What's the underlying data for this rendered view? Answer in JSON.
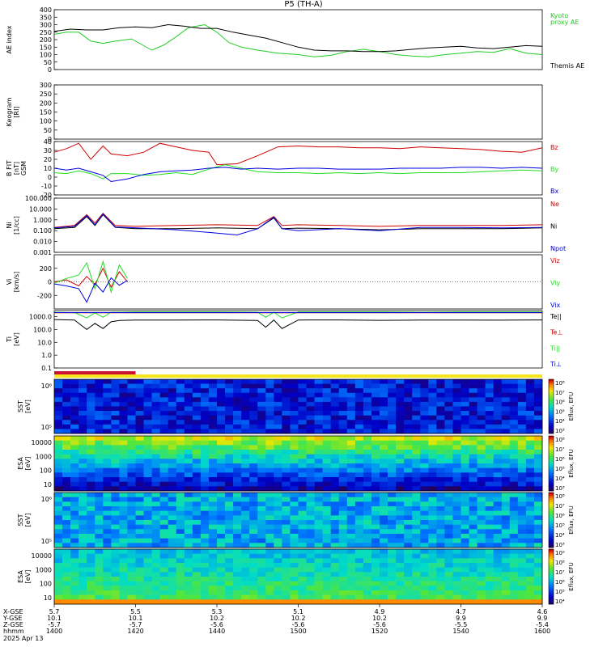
{
  "title": "P5  (TH-A)",
  "date_label": "2025 Apr 13",
  "colors": {
    "kyoto": "#22cc22",
    "themis": "#000000",
    "red": "#d00000",
    "green": "#22dd22",
    "blue": "#0000dd",
    "mode_red": "#cc1133",
    "mode_yellow": "#f5e51a"
  },
  "chart_data": [
    {
      "type": "line",
      "panel": "ae",
      "ylabel": "AE index",
      "ylim": [
        0,
        400
      ],
      "yticks": [
        "0",
        "50",
        "100",
        "150",
        "200",
        "250",
        "300",
        "350",
        "400"
      ],
      "series": [
        {
          "name": "Kyoto proxy AE",
          "label_lines": [
            "Kyoto",
            "proxy AE"
          ],
          "color": "#22cc22",
          "x": [
            0,
            3,
            6,
            9,
            12,
            15,
            19,
            24,
            27,
            30,
            33,
            37,
            40,
            43,
            46,
            50,
            55,
            60,
            64,
            68,
            72,
            76,
            80,
            84,
            88,
            92,
            96,
            100,
            104,
            108,
            112,
            116,
            120
          ],
          "y": [
            235,
            250,
            250,
            190,
            175,
            190,
            205,
            130,
            165,
            220,
            280,
            300,
            250,
            180,
            150,
            130,
            110,
            100,
            85,
            95,
            120,
            135,
            120,
            100,
            90,
            85,
            100,
            110,
            120,
            115,
            140,
            110,
            100
          ]
        },
        {
          "name": "Themis AE",
          "label_lines": [
            "Themis AE"
          ],
          "color": "#000000",
          "x": [
            0,
            4,
            8,
            12,
            16,
            20,
            24,
            28,
            32,
            36,
            40,
            44,
            48,
            52,
            56,
            60,
            64,
            68,
            72,
            76,
            80,
            84,
            88,
            92,
            96,
            100,
            104,
            108,
            112,
            116,
            120
          ],
          "y": [
            255,
            270,
            265,
            265,
            280,
            285,
            280,
            300,
            290,
            275,
            275,
            250,
            230,
            210,
            180,
            150,
            130,
            125,
            125,
            120,
            120,
            125,
            135,
            145,
            150,
            155,
            145,
            140,
            150,
            160,
            155
          ]
        }
      ]
    },
    {
      "type": "line",
      "panel": "keogram",
      "ylabel": "Keogram",
      "ylabel2": "[RI]",
      "ylim": [
        0,
        300
      ],
      "yticks": [
        "0",
        "50",
        "100",
        "150",
        "200",
        "250",
        "300"
      ],
      "series": []
    },
    {
      "type": "line",
      "panel": "bfield",
      "ylabel": "B FIT",
      "ylabel2": "[nT]",
      "ylabel3": "GSM",
      "ylim": [
        -20,
        40
      ],
      "yticks": [
        "-20",
        "-10",
        "0",
        "10",
        "20",
        "30",
        "40"
      ],
      "series": [
        {
          "name": "Bz",
          "color": "#d00000",
          "x": [
            0,
            3,
            6,
            9,
            12,
            14,
            18,
            22,
            26,
            30,
            34,
            38,
            40,
            45,
            50,
            55,
            60,
            65,
            70,
            75,
            80,
            85,
            90,
            95,
            100,
            105,
            110,
            115,
            120
          ],
          "y": [
            28,
            32,
            38,
            20,
            35,
            26,
            24,
            28,
            38,
            34,
            30,
            28,
            14,
            15,
            24,
            34,
            35,
            34,
            34,
            33,
            33,
            32,
            34,
            33,
            32,
            31,
            29,
            28,
            33
          ]
        },
        {
          "name": "By",
          "color": "#22dd22",
          "x": [
            0,
            3,
            6,
            9,
            12,
            14,
            18,
            22,
            26,
            30,
            34,
            38,
            42,
            46,
            50,
            55,
            60,
            65,
            70,
            75,
            80,
            85,
            90,
            95,
            100,
            105,
            110,
            115,
            120
          ],
          "y": [
            5,
            4,
            7,
            4,
            -2,
            4,
            4,
            2,
            3,
            5,
            3,
            9,
            14,
            10,
            6,
            5,
            5,
            4,
            5,
            4,
            5,
            4,
            5,
            5,
            5,
            6,
            7,
            8,
            7
          ]
        },
        {
          "name": "Bx",
          "color": "#0000dd",
          "x": [
            0,
            3,
            6,
            9,
            12,
            14,
            18,
            22,
            26,
            30,
            34,
            38,
            42,
            46,
            50,
            55,
            60,
            65,
            70,
            75,
            80,
            85,
            90,
            95,
            100,
            105,
            110,
            115,
            120
          ],
          "y": [
            10,
            8,
            10,
            6,
            2,
            -5,
            -2,
            3,
            6,
            7,
            8,
            10,
            11,
            9,
            10,
            9,
            10,
            10,
            9,
            9,
            9,
            10,
            10,
            10,
            11,
            11,
            10,
            11,
            10
          ]
        }
      ]
    },
    {
      "type": "line",
      "panel": "density",
      "ylabel": "Ni",
      "ylabel2": "[1/cc]",
      "ylim": [
        0.001,
        100
      ],
      "yticks": [
        "0.001",
        "0.010",
        "0.100",
        "1.000",
        "10.000",
        "100.000"
      ],
      "series": [
        {
          "name": "Ne",
          "color": "#d00000",
          "x": [
            0,
            5,
            8,
            10,
            12,
            15,
            20,
            30,
            40,
            50,
            54,
            56,
            60,
            70,
            80,
            90,
            100,
            110,
            120
          ],
          "y": [
            0.2,
            0.3,
            3.0,
            0.5,
            4.0,
            0.3,
            0.25,
            0.3,
            0.35,
            0.3,
            2.0,
            0.3,
            0.35,
            0.3,
            0.25,
            0.3,
            0.3,
            0.3,
            0.35
          ]
        },
        {
          "name": "Ni",
          "color": "#000000",
          "x": [
            0,
            5,
            8,
            10,
            12,
            15,
            20,
            30,
            40,
            50,
            54,
            56,
            60,
            70,
            80,
            90,
            100,
            110,
            120
          ],
          "y": [
            0.15,
            0.2,
            2.0,
            0.3,
            3.0,
            0.2,
            0.15,
            0.15,
            0.18,
            0.15,
            1.5,
            0.15,
            0.17,
            0.15,
            0.12,
            0.15,
            0.15,
            0.15,
            0.18
          ]
        },
        {
          "name": "Npot",
          "color": "#0000dd",
          "x": [
            0,
            5,
            8,
            10,
            12,
            15,
            20,
            30,
            40,
            45,
            50,
            54,
            56,
            60,
            70,
            80,
            90,
            100,
            110,
            120
          ],
          "y": [
            0.18,
            0.25,
            2.5,
            0.35,
            3.5,
            0.22,
            0.18,
            0.12,
            0.06,
            0.04,
            0.15,
            1.8,
            0.15,
            0.1,
            0.15,
            0.1,
            0.2,
            0.2,
            0.18,
            0.2
          ]
        }
      ]
    },
    {
      "type": "line",
      "panel": "velocity",
      "ylabel": "Vi",
      "ylabel2": "[km/s]",
      "ylim": [
        -400,
        400
      ],
      "yticks": [
        "-200",
        "0",
        "200"
      ],
      "series": [
        {
          "name": "Viz",
          "color": "#d00000",
          "x": [
            0,
            3,
            6,
            8,
            10,
            12,
            14,
            16,
            18
          ],
          "y": [
            0,
            30,
            -60,
            80,
            -40,
            200,
            -80,
            150,
            0
          ]
        },
        {
          "name": "Viy",
          "color": "#22dd22",
          "x": [
            0,
            3,
            6,
            8,
            10,
            12,
            14,
            16,
            18
          ],
          "y": [
            -20,
            50,
            100,
            280,
            -100,
            300,
            -150,
            250,
            50
          ]
        },
        {
          "name": "Vix",
          "color": "#0000dd",
          "x": [
            0,
            3,
            6,
            8,
            10,
            12,
            14,
            16,
            18
          ],
          "y": [
            -30,
            -60,
            -100,
            -300,
            -20,
            -150,
            60,
            -50,
            20
          ]
        }
      ]
    },
    {
      "type": "line",
      "panel": "temperature",
      "ylabel": "Ti",
      "ylabel2": "[eV]",
      "ylim": [
        0.1,
        3000
      ],
      "yticks": [
        "0.1",
        "1.0",
        "10.0",
        "100.0",
        "1000.0"
      ],
      "series": [
        {
          "name": "Te||",
          "color": "#000000",
          "x": [
            0,
            5,
            8,
            10,
            12,
            14,
            16,
            20,
            30,
            40,
            50,
            52,
            54,
            56,
            60,
            70,
            80,
            90,
            100,
            110,
            120
          ],
          "y": [
            600,
            550,
            100,
            300,
            120,
            400,
            500,
            550,
            550,
            560,
            500,
            150,
            550,
            120,
            550,
            560,
            520,
            540,
            550,
            530,
            560
          ]
        },
        {
          "name": "Te⊥",
          "color": "#d00000",
          "x": [
            0,
            120
          ],
          "y": [
            2000,
            2000
          ]
        },
        {
          "name": "Ti||",
          "color": "#22dd22",
          "x": [
            0,
            5,
            8,
            10,
            12,
            14,
            16,
            20,
            30,
            40,
            50,
            52,
            54,
            56,
            60,
            70,
            80,
            90,
            100,
            110,
            120
          ],
          "y": [
            2200,
            2100,
            800,
            2000,
            900,
            2200,
            2200,
            2300,
            2300,
            2300,
            2200,
            900,
            2200,
            800,
            2300,
            2300,
            2300,
            2200,
            2300,
            2300,
            2300
          ]
        },
        {
          "name": "Ti⊥",
          "color": "#0000dd",
          "x": [
            0,
            120
          ],
          "y": [
            2100,
            2100
          ]
        }
      ]
    }
  ],
  "spectrograms": [
    {
      "name": "sst-ion",
      "ylabel": "SST",
      "ylabel2": "[eV]",
      "yticks": [
        "10⁵",
        "10⁶"
      ],
      "cb_label": "Eflux, EFU",
      "cb_ticks": [
        "10³",
        "10⁴",
        "10⁵",
        "10⁶",
        "10⁷",
        "10⁸"
      ]
    },
    {
      "name": "esa-ion",
      "ylabel": "ESA",
      "ylabel2": "[eV]",
      "yticks": [
        "10",
        "100",
        "1000",
        "10000"
      ],
      "cb_label": "Eflux, EFU",
      "cb_ticks": [
        "10³",
        "10⁴",
        "10⁵",
        "10⁶",
        "10⁷",
        "10⁸"
      ]
    },
    {
      "name": "sst-electron",
      "ylabel": "SST",
      "ylabel2": "[eV]",
      "yticks": [
        "10⁵",
        "10⁶"
      ],
      "cb_label": "Eflux, EFU",
      "cb_ticks": [
        "10³",
        "10⁴",
        "10⁵",
        "10⁶",
        "10⁷",
        "10⁸"
      ]
    },
    {
      "name": "esa-electron",
      "ylabel": "ESA",
      "ylabel2": "[eV]",
      "yticks": [
        "10",
        "100",
        "1000",
        "10000"
      ],
      "cb_label": "Eflux, EFU",
      "cb_ticks": [
        "10⁴",
        "10⁵",
        "10⁶",
        "10⁷",
        "10⁸",
        "10⁹"
      ]
    }
  ],
  "mode_bar": {
    "red_until_minute": 20
  },
  "xaxis": {
    "row_labels": [
      "X-GSE",
      "Y-GSE",
      "Z-GSE",
      "hhmm"
    ],
    "ticks": [
      {
        "minute": 0,
        "values": [
          "5.7",
          "10.1",
          "-5.7",
          "1400"
        ]
      },
      {
        "minute": 20,
        "values": [
          "5.5",
          "10.1",
          "-5.7",
          "1420"
        ]
      },
      {
        "minute": 40,
        "values": [
          "5.3",
          "10.2",
          "-5.6",
          "1440"
        ]
      },
      {
        "minute": 60,
        "values": [
          "5.1",
          "10.2",
          "-5.6",
          "1500"
        ]
      },
      {
        "minute": 80,
        "values": [
          "4.9",
          "10.2",
          "-5.6",
          "1520"
        ]
      },
      {
        "minute": 100,
        "values": [
          "4.7",
          "9.9",
          "-5.5",
          "1540"
        ]
      },
      {
        "minute": 120,
        "values": [
          "4.6",
          "9.9",
          "-5.4",
          "1600"
        ]
      }
    ]
  }
}
